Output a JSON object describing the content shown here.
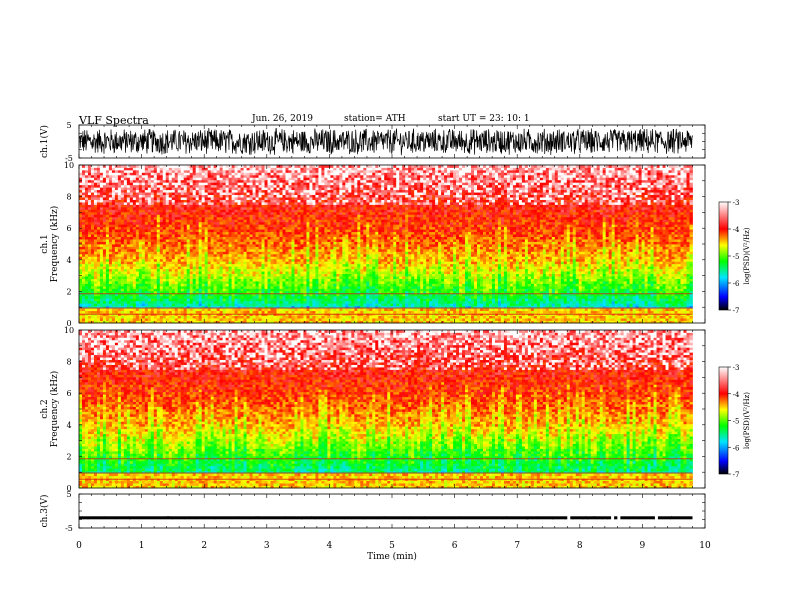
{
  "header": {
    "title": "VLF  Spectra",
    "date": "Jun. 26, 2019",
    "station": "station= ATH",
    "start_ut": "start  UT  =    23: 10: 1"
  },
  "colorbar_labels": {
    "ch1": "log(PSD)(V²/Hz)",
    "ch2": "log(PSD)(V²/Hz)"
  },
  "colors": {
    "spectrogram_ramp": [
      "#000000",
      "#0000ff",
      "#00e5ff",
      "#00ff00",
      "#ffff00",
      "#ff0000",
      "#ffffff"
    ],
    "trace": "#000000"
  },
  "chart_data": [
    {
      "type": "line",
      "panel": "ch1-waveform",
      "ylabel": "ch.1(V)",
      "ylim": [
        -5,
        5
      ],
      "yticks": [
        -5,
        5
      ],
      "xlim": [
        0,
        10
      ],
      "description_series": "broadband noise waveform, amplitude approx. ±4 V across the full 0–9.8 min span"
    },
    {
      "type": "heatmap",
      "panel": "ch1-spectrogram",
      "ylabel": "Frequency  (kHz)",
      "channel_label": "ch.1",
      "ylim": [
        0,
        10
      ],
      "yticks": [
        0,
        2,
        4,
        6,
        8,
        10
      ],
      "xlim": [
        0,
        10
      ],
      "data_extent_min": 9.8,
      "colorbar": {
        "label": "log(PSD)(V²/Hz)",
        "range": [
          -7,
          -3
        ],
        "ticks": [
          -7,
          -6,
          -5,
          -4,
          -3
        ]
      },
      "typical_log_psd": [
        {
          "freq_khz": 0.5,
          "value": -4.3
        },
        {
          "freq_khz": 1.0,
          "value": -5.0
        },
        {
          "freq_khz": 2.0,
          "value": -4.6
        },
        {
          "freq_khz": 4.0,
          "value": -4.1
        },
        {
          "freq_khz": 6.0,
          "value": -3.8
        },
        {
          "freq_khz": 8.0,
          "value": -3.6
        },
        {
          "freq_khz": 10.0,
          "value": -3.3
        }
      ]
    },
    {
      "type": "heatmap",
      "panel": "ch2-spectrogram",
      "ylabel": "Frequency  (kHz)",
      "channel_label": "ch.2",
      "ylim": [
        0,
        10
      ],
      "yticks": [
        0,
        2,
        4,
        6,
        8,
        10
      ],
      "xlim": [
        0,
        10
      ],
      "data_extent_min": 9.8,
      "colorbar": {
        "label": "log(PSD)(V²/Hz)",
        "range": [
          -7,
          -3
        ],
        "ticks": [
          -7,
          -6,
          -5,
          -4,
          -3
        ]
      },
      "typical_log_psd": [
        {
          "freq_khz": 0.5,
          "value": -4.3
        },
        {
          "freq_khz": 1.0,
          "value": -4.8
        },
        {
          "freq_khz": 2.0,
          "value": -4.6
        },
        {
          "freq_khz": 4.0,
          "value": -4.1
        },
        {
          "freq_khz": 6.0,
          "value": -3.8
        },
        {
          "freq_khz": 8.0,
          "value": -3.6
        },
        {
          "freq_khz": 10.0,
          "value": -3.3
        }
      ]
    },
    {
      "type": "line",
      "panel": "ch3-waveform",
      "ylabel": "ch.3(V)",
      "ylim": [
        -5,
        5
      ],
      "yticks": [
        -5,
        5
      ],
      "xlim": [
        0,
        10
      ],
      "xlabel": "Time  (min)",
      "xticks": [
        0,
        1,
        2,
        3,
        4,
        5,
        6,
        7,
        8,
        9,
        10
      ],
      "baseline_v": -2,
      "description_series": "near-constant trace around -2 V with small dropouts near 7.8, 8.5, 8.6 and 9.2 min"
    }
  ]
}
